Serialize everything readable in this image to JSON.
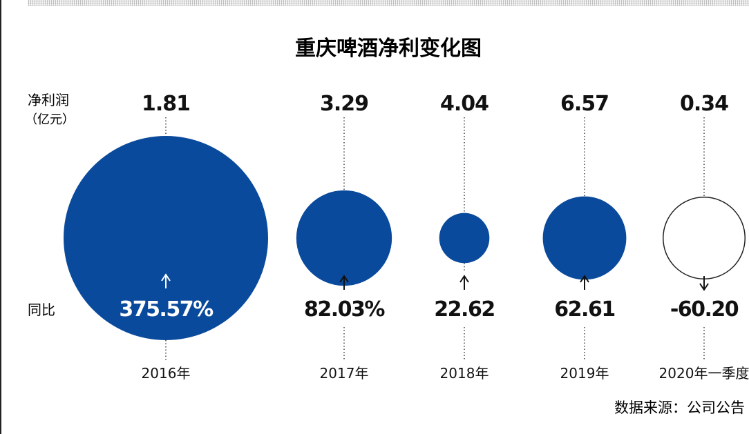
{
  "chart_data": {
    "type": "bubble",
    "title": "重庆啤酒净利变化图",
    "value_label": "净利润",
    "value_unit": "（亿元）",
    "yoy_label": "同比",
    "source": "数据来源：公司公告",
    "categories": [
      "2016年",
      "2017年",
      "2018年",
      "2019年",
      "2020年一季度"
    ],
    "values": [
      1.81,
      3.29,
      4.04,
      6.57,
      0.34
    ],
    "value_text": [
      "1.81",
      "3.29",
      "4.04",
      "6.57",
      "0.34"
    ],
    "yoy": [
      375.57,
      82.03,
      22.62,
      62.61,
      -60.2
    ],
    "yoy_text": [
      "375.57%",
      "82.03%",
      "22.62",
      "62.61",
      "-60.20"
    ],
    "yoy_direction": [
      "up",
      "up",
      "up",
      "up",
      "down"
    ],
    "bubble_encodes": "yoy",
    "colors": {
      "positive": "#0a4a9c",
      "negative": "#ffffff",
      "text": "#111111"
    }
  }
}
